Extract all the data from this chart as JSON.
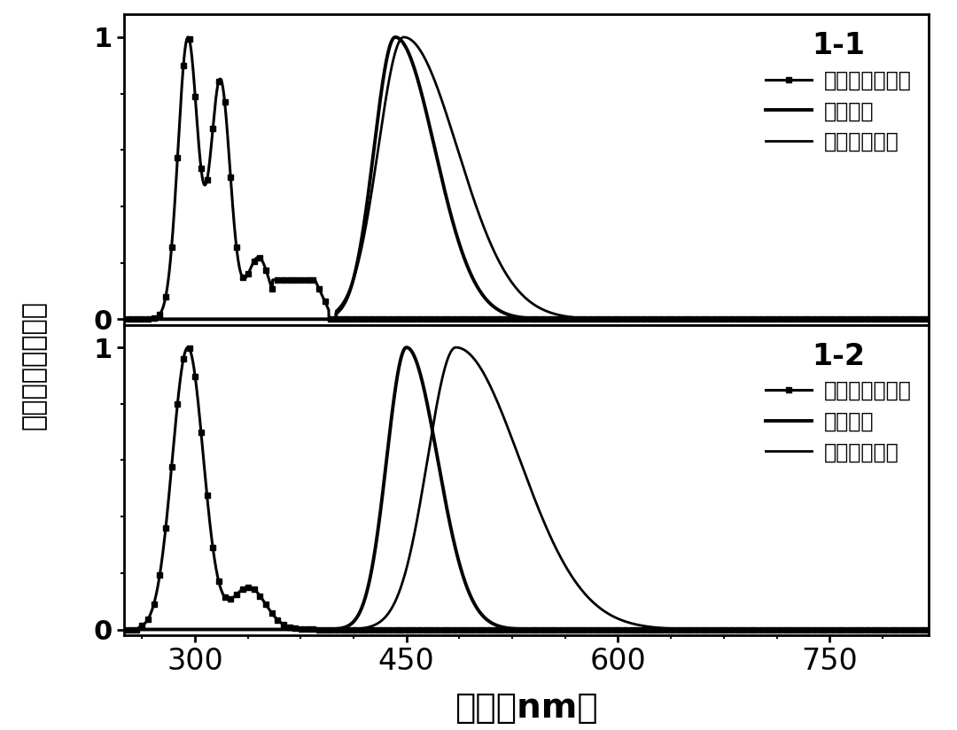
{
  "xlim": [
    250,
    820
  ],
  "ylim": [
    -0.02,
    1.08
  ],
  "xticks": [
    300,
    450,
    600,
    750
  ],
  "yticks": [
    0,
    1
  ],
  "xlabel": "波长（nm）",
  "ylabel_chars": [
    "归",
    "一",
    "化",
    "的",
    "光",
    "谱",
    "强",
    "度"
  ],
  "label_abs": "紫外可见吸收谱",
  "label_fl": "荧光光谱",
  "label_ph": "低温磷光光谱",
  "panel1_label": "1-1",
  "panel2_label": "1-2",
  "background_color": "#ffffff",
  "line_color": "#000000"
}
